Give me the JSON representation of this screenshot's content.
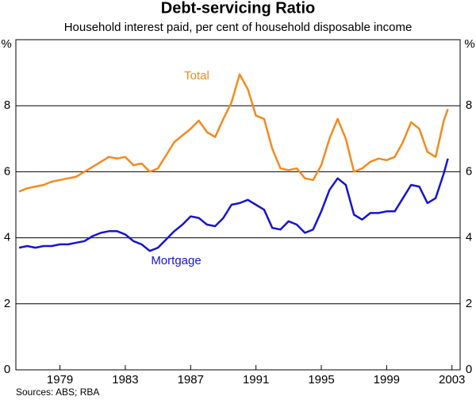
{
  "chart_data": {
    "type": "line",
    "title": "Debt-servicing Ratio",
    "subtitle": "Household interest paid, per cent of household disposable income",
    "y_unit": "%",
    "source": "Sources: ABS; RBA",
    "x": [
      1976.5,
      1977,
      1977.5,
      1978,
      1978.5,
      1979,
      1979.5,
      1980,
      1980.5,
      1981,
      1981.5,
      1982,
      1982.5,
      1983,
      1983.5,
      1984,
      1984.5,
      1985,
      1985.5,
      1986,
      1986.5,
      1987,
      1987.5,
      1988,
      1988.5,
      1989,
      1989.5,
      1990,
      1990.5,
      1991,
      1991.5,
      1992,
      1992.5,
      1993,
      1993.5,
      1994,
      1994.5,
      1995,
      1995.5,
      1996,
      1996.5,
      1997,
      1997.5,
      1998,
      1998.5,
      1999,
      1999.5,
      2000,
      2000.5,
      2001,
      2001.5,
      2002,
      2002.5,
      2002.75
    ],
    "series": [
      {
        "name": "Total",
        "color": "#f28a1f",
        "values": [
          5.4,
          5.5,
          5.55,
          5.6,
          5.7,
          5.75,
          5.8,
          5.85,
          6.0,
          6.15,
          6.3,
          6.45,
          6.4,
          6.45,
          6.2,
          6.25,
          6.0,
          6.1,
          6.5,
          6.9,
          7.1,
          7.3,
          7.55,
          7.2,
          7.05,
          7.6,
          8.1,
          8.95,
          8.5,
          7.7,
          7.6,
          6.7,
          6.1,
          6.05,
          6.1,
          5.8,
          5.75,
          6.2,
          7.0,
          7.6,
          7.0,
          6.0,
          6.1,
          6.3,
          6.4,
          6.35,
          6.45,
          6.9,
          7.5,
          7.3,
          6.6,
          6.45,
          7.55,
          7.9
        ]
      },
      {
        "name": "Mortgage",
        "color": "#1515d0",
        "values": [
          3.7,
          3.75,
          3.7,
          3.75,
          3.75,
          3.8,
          3.8,
          3.85,
          3.9,
          4.05,
          4.15,
          4.2,
          4.2,
          4.1,
          3.9,
          3.8,
          3.6,
          3.7,
          3.95,
          4.2,
          4.4,
          4.65,
          4.6,
          4.4,
          4.35,
          4.6,
          5.0,
          5.05,
          5.15,
          5.0,
          4.85,
          4.3,
          4.25,
          4.5,
          4.4,
          4.15,
          4.25,
          4.8,
          5.45,
          5.8,
          5.6,
          4.7,
          4.55,
          4.75,
          4.75,
          4.8,
          4.8,
          5.2,
          5.6,
          5.55,
          5.05,
          5.2,
          5.95,
          6.4
        ]
      }
    ],
    "xlim": [
      1976.3,
      2003.5
    ],
    "xticks": [
      1979,
      1983,
      1987,
      1991,
      1995,
      1999,
      2003
    ],
    "ylim": [
      0,
      10
    ],
    "yticks": [
      0,
      2,
      4,
      6,
      8
    ],
    "grid": true
  }
}
